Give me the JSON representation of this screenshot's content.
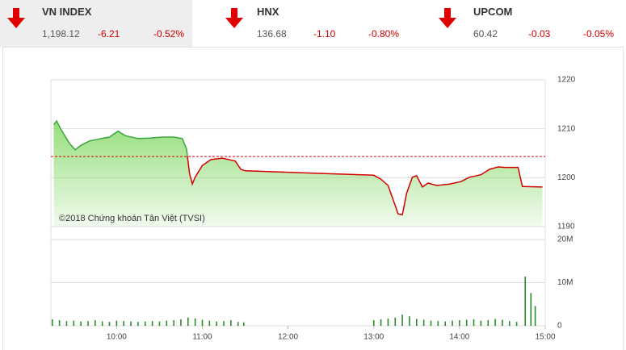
{
  "indices": [
    {
      "name": "VN INDEX",
      "value": "1,198.12",
      "change": "-6.21",
      "percent": "-0.52%"
    },
    {
      "name": "HNX",
      "value": "136.68",
      "change": "-1.10",
      "percent": "-0.80%"
    },
    {
      "name": "UPCOM",
      "value": "60.42",
      "change": "-0.03",
      "percent": "-0.05%"
    }
  ],
  "chart_data": [
    {
      "type": "line",
      "annotation": "©2018 Chứng khoán Tân Việt (TVSI)",
      "x": [
        "09:16",
        "09:18",
        "09:21",
        "09:27",
        "09:31",
        "09:35",
        "09:41",
        "09:49",
        "09:55",
        "10:01",
        "10:06",
        "10:15",
        "10:23",
        "10:32",
        "10:40",
        "10:46",
        "10:49",
        "10:51",
        "10:53",
        "10:55",
        "11:00",
        "11:06",
        "11:14",
        "11:23",
        "11:27",
        "11:30",
        "13:00",
        "13:05",
        "13:10",
        "13:15",
        "13:17",
        "13:20",
        "13:23",
        "13:27",
        "13:30",
        "13:34",
        "13:38",
        "13:44",
        "13:53",
        "14:01",
        "14:07",
        "14:15",
        "14:21",
        "14:27",
        "14:32",
        "14:41",
        "14:44",
        "14:58"
      ],
      "values": [
        1210.8,
        1211.6,
        1209.9,
        1207.0,
        1205.7,
        1206.6,
        1207.5,
        1208.0,
        1208.3,
        1209.5,
        1208.6,
        1208.0,
        1208.1,
        1208.3,
        1208.3,
        1208.0,
        1205.8,
        1200.9,
        1198.7,
        1200.1,
        1202.5,
        1203.7,
        1204.0,
        1203.4,
        1201.7,
        1201.4,
        1200.5,
        1199.7,
        1198.4,
        1194.3,
        1192.6,
        1192.4,
        1196.8,
        1200.1,
        1200.4,
        1198.1,
        1198.9,
        1198.4,
        1198.7,
        1199.2,
        1200.1,
        1200.6,
        1201.7,
        1202.2,
        1202.1,
        1202.1,
        1198.2,
        1198.1
      ],
      "reference": 1204.33,
      "up_color": "#3aa53a",
      "down_color": "#d40000",
      "fill_color": "#8fdc74",
      "xlim": [
        "09:14",
        "15:00"
      ],
      "ylim": [
        1190,
        1220
      ],
      "yticks": [
        1190,
        1200,
        1210,
        1220
      ],
      "grid": true
    },
    {
      "type": "bar",
      "color": "#2a8a2a",
      "x": [
        "09:15",
        "09:20",
        "09:25",
        "09:30",
        "09:35",
        "09:40",
        "09:45",
        "09:50",
        "09:55",
        "10:00",
        "10:05",
        "10:10",
        "10:15",
        "10:20",
        "10:25",
        "10:30",
        "10:35",
        "10:40",
        "10:45",
        "10:50",
        "10:55",
        "11:00",
        "11:05",
        "11:10",
        "11:15",
        "11:20",
        "11:25",
        "11:29",
        "13:00",
        "13:05",
        "13:10",
        "13:15",
        "13:20",
        "13:25",
        "13:30",
        "13:35",
        "13:40",
        "13:45",
        "13:50",
        "13:55",
        "14:00",
        "14:05",
        "14:10",
        "14:15",
        "14:20",
        "14:25",
        "14:30",
        "14:35",
        "14:40",
        "14:46",
        "14:50",
        "14:53"
      ],
      "values": [
        1500000,
        1300000,
        1100000,
        1200000,
        1000000,
        1100000,
        1300000,
        1000000,
        900000,
        1200000,
        1100000,
        1000000,
        900000,
        1000000,
        1100000,
        1000000,
        1200000,
        1300000,
        1500000,
        1900000,
        1700000,
        1400000,
        1200000,
        1000000,
        1100000,
        1300000,
        900000,
        800000,
        1300000,
        1500000,
        1700000,
        1900000,
        2600000,
        2200000,
        1600000,
        1400000,
        1200000,
        1100000,
        1000000,
        1200000,
        1300000,
        1400000,
        1500000,
        1200000,
        1300000,
        1600000,
        1400000,
        1100000,
        900000,
        11400000,
        7600000,
        4600000
      ],
      "xlim": [
        "09:14",
        "15:00"
      ],
      "xticks": [
        "10:00",
        "11:00",
        "12:00",
        "13:00",
        "14:00",
        "15:00"
      ],
      "ylim": [
        0,
        20000000
      ],
      "yticks": [
        {
          "value": 0,
          "label": "0"
        },
        {
          "value": 10000000,
          "label": "10M"
        },
        {
          "value": 20000000,
          "label": "20M"
        }
      ],
      "grid": true
    }
  ]
}
